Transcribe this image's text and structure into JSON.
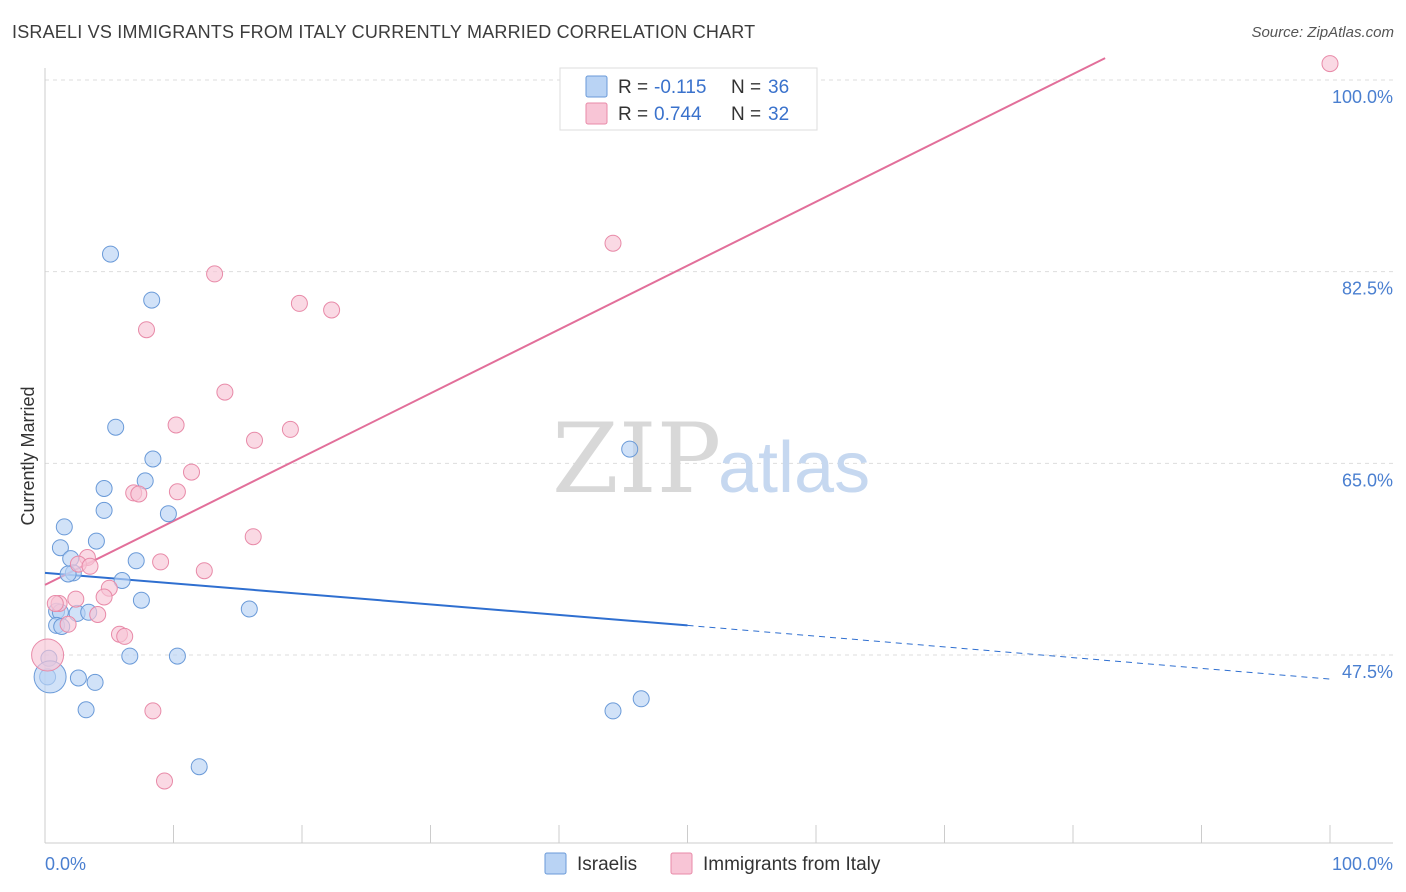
{
  "title": "ISRAELI VS IMMIGRANTS FROM ITALY CURRENTLY MARRIED CORRELATION CHART",
  "source": "Source: ZipAtlas.com",
  "watermark": {
    "zip": "ZIP",
    "atlas": "atlas"
  },
  "colors": {
    "blue_fill": "#b9d3f4",
    "blue_stroke": "#6a9ad8",
    "blue_line": "#2f6fd0",
    "pink_fill": "#f8c5d6",
    "pink_stroke": "#e88aa8",
    "pink_line": "#e26f9a",
    "grid": "#dddddd",
    "axis_text": "#4a7fd0"
  },
  "legend": {
    "r_label": "R =",
    "n_label": "N =",
    "rows": [
      {
        "r": "-0.115",
        "n": "36"
      },
      {
        "r": "0.744",
        "n": "32"
      }
    ]
  },
  "chart_data": {
    "type": "scatter",
    "title": "ISRAELI VS IMMIGRANTS FROM ITALY CURRENTLY MARRIED CORRELATION CHART",
    "xlabel": "",
    "ylabel": "Currently Married",
    "xlim": [
      0,
      100
    ],
    "ylim": [
      31.5,
      102
    ],
    "x_tick_labels": [
      "0.0%",
      "100.0%"
    ],
    "y_ticks": [
      47.5,
      65.0,
      82.5,
      100.0
    ],
    "y_tick_labels": [
      "47.5%",
      "65.0%",
      "82.5%",
      "100.0%"
    ],
    "grid": true,
    "legend_position": "top-center",
    "series": [
      {
        "name": "Israelis",
        "color": "#b9d3f4",
        "points": [
          [
            5.1,
            84.1
          ],
          [
            8.3,
            79.9
          ],
          [
            5.5,
            68.3
          ],
          [
            8.4,
            65.4
          ],
          [
            7.8,
            63.4
          ],
          [
            4.6,
            62.7
          ],
          [
            4.6,
            60.7
          ],
          [
            9.6,
            60.4
          ],
          [
            1.5,
            59.2
          ],
          [
            4.0,
            57.9
          ],
          [
            1.2,
            57.3
          ],
          [
            2.0,
            56.3
          ],
          [
            2.2,
            55.0
          ],
          [
            1.8,
            54.9
          ],
          [
            7.1,
            56.1
          ],
          [
            6.0,
            54.3
          ],
          [
            7.5,
            52.5
          ],
          [
            0.9,
            51.5
          ],
          [
            1.2,
            51.4
          ],
          [
            2.5,
            51.3
          ],
          [
            3.4,
            51.4
          ],
          [
            0.9,
            50.2
          ],
          [
            1.3,
            50.1
          ],
          [
            15.9,
            51.7
          ],
          [
            6.6,
            47.4
          ],
          [
            10.3,
            47.4
          ],
          [
            2.6,
            45.4
          ],
          [
            3.9,
            45.0
          ],
          [
            0.2,
            45.5
          ],
          [
            3.2,
            42.5
          ],
          [
            12.0,
            37.3
          ],
          [
            45.5,
            66.3
          ],
          [
            44.2,
            42.4
          ],
          [
            46.4,
            43.5
          ],
          [
            0.3,
            47.2
          ],
          [
            0.4,
            45.5
          ]
        ]
      },
      {
        "name": "Immigrants from Italy",
        "color": "#f8c5d6",
        "points": [
          [
            100.0,
            101.5
          ],
          [
            44.2,
            85.1
          ],
          [
            13.2,
            82.3
          ],
          [
            22.3,
            79.0
          ],
          [
            19.8,
            79.6
          ],
          [
            7.9,
            77.2
          ],
          [
            14.0,
            71.5
          ],
          [
            10.2,
            68.5
          ],
          [
            19.1,
            68.1
          ],
          [
            16.3,
            67.1
          ],
          [
            11.4,
            64.2
          ],
          [
            10.3,
            62.4
          ],
          [
            6.9,
            62.3
          ],
          [
            7.3,
            62.2
          ],
          [
            16.2,
            58.3
          ],
          [
            3.3,
            56.4
          ],
          [
            2.6,
            55.8
          ],
          [
            3.5,
            55.6
          ],
          [
            9.0,
            56.0
          ],
          [
            12.4,
            55.2
          ],
          [
            5.0,
            53.6
          ],
          [
            4.6,
            52.8
          ],
          [
            2.4,
            52.6
          ],
          [
            1.1,
            52.2
          ],
          [
            0.8,
            52.2
          ],
          [
            4.1,
            51.2
          ],
          [
            1.8,
            50.3
          ],
          [
            5.8,
            49.4
          ],
          [
            6.2,
            49.2
          ],
          [
            0.2,
            47.5
          ],
          [
            8.4,
            42.4
          ],
          [
            9.3,
            36.0
          ]
        ]
      }
    ],
    "trend_lines": [
      {
        "series": "Israelis",
        "x0": 0,
        "y0": 55.0,
        "x1": 50,
        "y1": 50.2,
        "x_dash_end": 100,
        "y_dash_end": 45.3
      },
      {
        "series": "Immigrants from Italy",
        "x0": 0,
        "y0": 53.9,
        "x1": 82.5,
        "y1": 102
      }
    ]
  }
}
